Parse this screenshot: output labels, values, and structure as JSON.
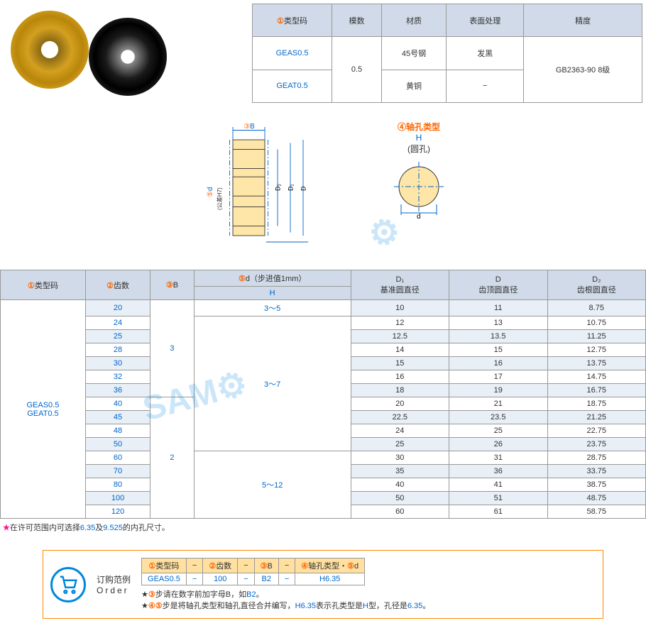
{
  "topTable": {
    "headers": [
      "类型码",
      "模数",
      "材质",
      "表面处理",
      "精度"
    ],
    "headerNums": [
      "①",
      "",
      "",
      "",
      ""
    ],
    "rows": [
      [
        "GEAS0.5",
        "0.5",
        "45号钢",
        "发黑",
        "GB2363-90 8级"
      ],
      [
        "GEAT0.5",
        "",
        "黄铜",
        "−",
        ""
      ]
    ]
  },
  "diagram": {
    "label_3b": "③B",
    "label_5d": "⑤d",
    "label_tol": "(公差H7)",
    "label_d2": "D₂",
    "label_d1": "D₁",
    "label_d": "D",
    "holeTitle": "④轴孔类型",
    "holeH": "H",
    "holeSub": "(圆孔)",
    "holeD": "d"
  },
  "mainTable": {
    "headers": [
      {
        "num": "①",
        "text": "类型码"
      },
      {
        "num": "②",
        "text": "齿数"
      },
      {
        "num": "③",
        "text": "B"
      },
      {
        "num": "⑤",
        "text": "d（步进值1mm）"
      },
      {
        "num": "",
        "text": "D₁\n基准圆直径"
      },
      {
        "num": "",
        "text": "D\n齿顶圆直径"
      },
      {
        "num": "",
        "text": "D₂\n齿根圆直径"
      }
    ],
    "subH": "H",
    "typeCodes": [
      "GEAS0.5",
      "GEAT0.5"
    ],
    "rows": [
      {
        "teeth": "20",
        "b": "3",
        "dh": "3～5",
        "d1": "10",
        "d": "11",
        "d2": "8.75"
      },
      {
        "teeth": "24",
        "b": "",
        "dh": "3～7",
        "d1": "12",
        "d": "13",
        "d2": "10.75"
      },
      {
        "teeth": "25",
        "b": "",
        "dh": "",
        "d1": "12.5",
        "d": "13.5",
        "d2": "11.25"
      },
      {
        "teeth": "28",
        "b": "",
        "dh": "",
        "d1": "14",
        "d": "15",
        "d2": "12.75"
      },
      {
        "teeth": "30",
        "b": "",
        "dh": "",
        "d1": "15",
        "d": "16",
        "d2": "13.75"
      },
      {
        "teeth": "32",
        "b": "",
        "dh": "",
        "d1": "16",
        "d": "17",
        "d2": "14.75"
      },
      {
        "teeth": "36",
        "b": "",
        "dh": "",
        "d1": "18",
        "d": "19",
        "d2": "16.75"
      },
      {
        "teeth": "40",
        "b": "2",
        "dh": "",
        "d1": "20",
        "d": "21",
        "d2": "18.75"
      },
      {
        "teeth": "45",
        "b": "",
        "dh": "",
        "d1": "22.5",
        "d": "23.5",
        "d2": "21.25"
      },
      {
        "teeth": "48",
        "b": "",
        "dh": "",
        "d1": "24",
        "d": "25",
        "d2": "22.75"
      },
      {
        "teeth": "50",
        "b": "",
        "dh": "",
        "d1": "25",
        "d": "26",
        "d2": "23.75"
      },
      {
        "teeth": "60",
        "b": "",
        "dh": "5～12",
        "d1": "30",
        "d": "31",
        "d2": "28.75"
      },
      {
        "teeth": "70",
        "b": "",
        "dh": "",
        "d1": "35",
        "d": "36",
        "d2": "33.75"
      },
      {
        "teeth": "80",
        "b": "",
        "dh": "",
        "d1": "40",
        "d": "41",
        "d2": "38.75"
      },
      {
        "teeth": "100",
        "b": "",
        "dh": "",
        "d1": "50",
        "d": "51",
        "d2": "48.75"
      },
      {
        "teeth": "120",
        "b": "",
        "dh": "",
        "d1": "60",
        "d": "61",
        "d2": "58.75"
      }
    ]
  },
  "note": {
    "star": "★",
    "text1": "在许可范围内可选择",
    "val1": "6.35",
    "text2": "及",
    "val2": "9.525",
    "text3": "的内孔尺寸。"
  },
  "order": {
    "title1": "订购范例",
    "title2": "Order",
    "headers": [
      "①类型码",
      "−",
      "②齿数",
      "−",
      "③B",
      "−",
      "④轴孔类型・⑤d"
    ],
    "values": [
      "GEAS0.5",
      "−",
      "100",
      "−",
      "B2",
      "−",
      "H6.35"
    ],
    "note1_pre": "★③",
    "note1": "步请在数字前加字母B，如",
    "note1_val": "B2",
    "note1_end": "。",
    "note2_pre": "★④⑤",
    "note2": "步是将轴孔类型和轴孔直径合并编写，",
    "note2_val": "H6.35",
    "note2_mid": "表示孔类型是",
    "note2_h": "H",
    "note2_mid2": "型，孔径是",
    "note2_val2": "6.35",
    "note2_end": "。"
  },
  "colors": {
    "headerBg": "#d0dae8",
    "blue": "#0066cc",
    "orange": "#ff6600",
    "orderBorder": "#ff8800",
    "stripeBg": "#e8eff6"
  }
}
